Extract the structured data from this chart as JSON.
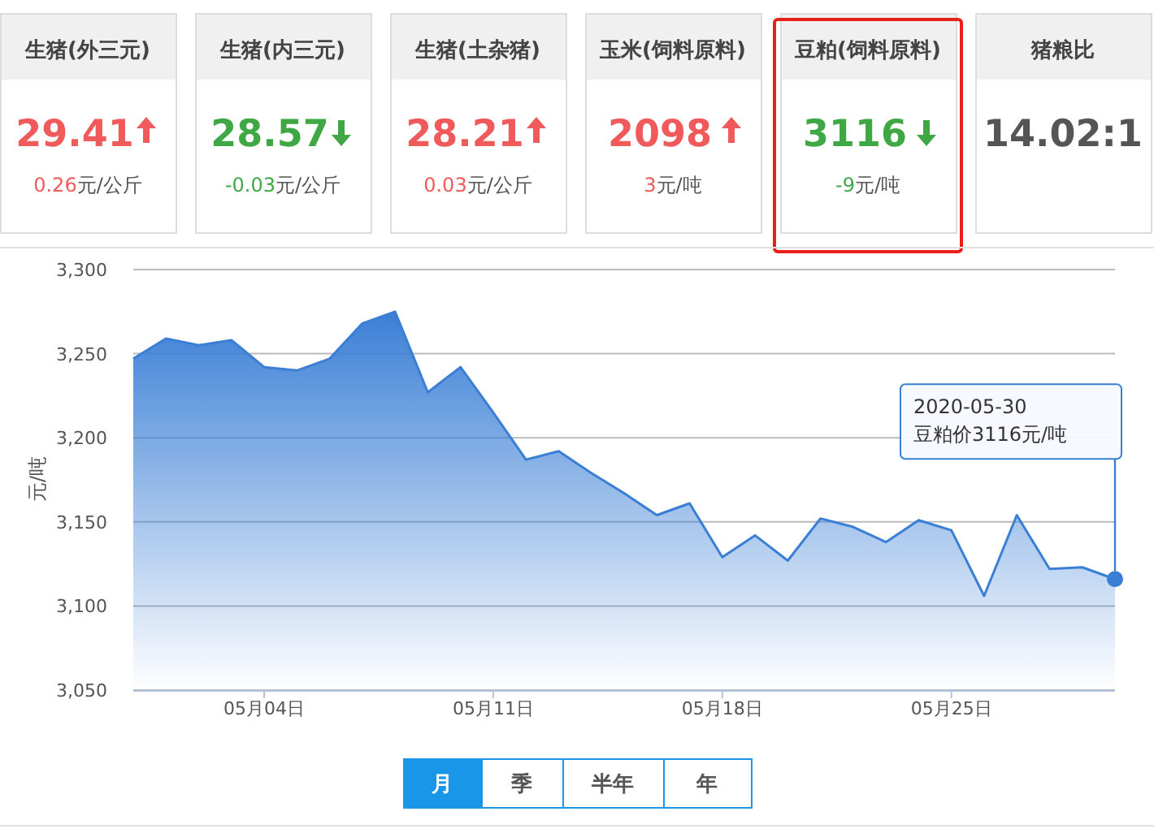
{
  "chart_data": [
    {
      "type": "other",
      "categories": [
        "生猪(外三元)",
        "生猪(内三元)",
        "生猪(土杂猪)",
        "玉米(饲料原料)",
        "豆粕(饲料原料)",
        "猪粮比"
      ],
      "value_labels": [
        "29.41",
        "28.57",
        "28.21",
        "2098",
        "3116",
        "14.02:1"
      ],
      "values": [
        29.41,
        28.57,
        28.21,
        2098,
        3116,
        null
      ],
      "annotations": [
        "0.26元/公斤",
        "-0.03元/公斤",
        "0.03元/公斤",
        "3元/吨",
        "-9元/吨",
        null
      ]
    },
    {
      "type": "area",
      "ylabel": "元/吨",
      "color": "#3a7fd5",
      "grid": "y",
      "x": [
        "2020-04-30",
        "2020-05-01",
        "2020-05-02",
        "2020-05-03",
        "2020-05-04",
        "2020-05-05",
        "2020-05-06",
        "2020-05-07",
        "2020-05-08",
        "2020-05-09",
        "2020-05-10",
        "2020-05-11",
        "2020-05-12",
        "2020-05-13",
        "2020-05-14",
        "2020-05-15",
        "2020-05-16",
        "2020-05-17",
        "2020-05-18",
        "2020-05-19",
        "2020-05-20",
        "2020-05-21",
        "2020-05-22",
        "2020-05-23",
        "2020-05-24",
        "2020-05-25",
        "2020-05-26",
        "2020-05-27",
        "2020-05-28",
        "2020-05-29",
        "2020-05-30"
      ],
      "values": [
        3247,
        3259,
        3255,
        3258,
        3242,
        3240,
        3247,
        3268,
        3275,
        3227,
        3242,
        3215,
        3187,
        3192,
        3179,
        3167,
        3154,
        3161,
        3129,
        3142,
        3127,
        3152,
        3147,
        3138,
        3151,
        3145,
        3106,
        3154,
        3122,
        3123,
        3116
      ],
      "xlim": [
        "2020-04-30",
        "2020-05-30"
      ],
      "xticks": [
        {
          "value": "2020-05-04",
          "label": "05月04日"
        },
        {
          "value": "2020-05-11",
          "label": "05月11日"
        },
        {
          "value": "2020-05-18",
          "label": "05月18日"
        },
        {
          "value": "2020-05-25",
          "label": "05月25日"
        }
      ],
      "ylim": [
        3050,
        3300
      ],
      "yticks": [
        {
          "value": 3050,
          "label": "3,050"
        },
        {
          "value": 3100,
          "label": "3,100"
        },
        {
          "value": 3150,
          "label": "3,150"
        },
        {
          "value": 3200,
          "label": "3,200"
        },
        {
          "value": 3250,
          "label": "3,250"
        },
        {
          "value": 3300,
          "label": "3,300"
        }
      ],
      "annotations": [
        "2020-05-30\n豆粕价3116元/吨"
      ]
    },
    {
      "type": "other",
      "categories": [
        "月",
        "季",
        "半年",
        "年"
      ]
    }
  ]
}
